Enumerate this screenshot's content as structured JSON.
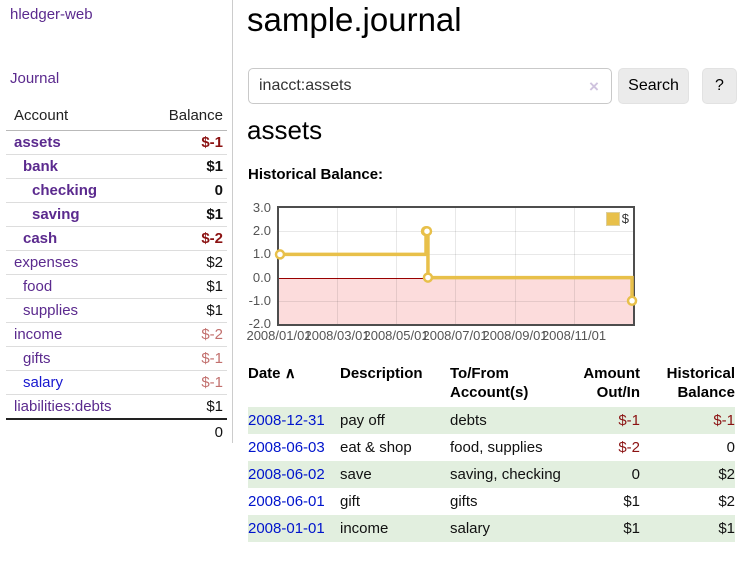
{
  "app": {
    "brand": "hledger-web",
    "nav": {
      "journal": "Journal"
    }
  },
  "sidebar": {
    "columns": {
      "account": "Account",
      "balance": "Balance"
    },
    "accounts": [
      {
        "name": "assets",
        "indent": 0,
        "bold": true,
        "balance": "$-1",
        "balance_style": "neg-strong",
        "name_style": "purple"
      },
      {
        "name": "bank",
        "indent": 1,
        "bold": true,
        "balance": "$1",
        "balance_style": "pos",
        "name_style": "purple"
      },
      {
        "name": "checking",
        "indent": 2,
        "bold": true,
        "balance": "0",
        "balance_style": "pos",
        "name_style": "purple"
      },
      {
        "name": "saving",
        "indent": 2,
        "bold": true,
        "balance": "$1",
        "balance_style": "pos",
        "name_style": "purple"
      },
      {
        "name": "cash",
        "indent": 1,
        "bold": true,
        "balance": "$-2",
        "balance_style": "neg-strong",
        "name_style": "purple"
      },
      {
        "name": "expenses",
        "indent": 0,
        "bold": false,
        "balance": "$2",
        "balance_style": "pos",
        "name_style": "purple"
      },
      {
        "name": "food",
        "indent": 1,
        "bold": false,
        "balance": "$1",
        "balance_style": "pos",
        "name_style": "purple"
      },
      {
        "name": "supplies",
        "indent": 1,
        "bold": false,
        "balance": "$1",
        "balance_style": "pos",
        "name_style": "purple"
      },
      {
        "name": "income",
        "indent": 0,
        "bold": false,
        "balance": "$-2",
        "balance_style": "neg-soft",
        "name_style": "purple"
      },
      {
        "name": "gifts",
        "indent": 1,
        "bold": false,
        "balance": "$-1",
        "balance_style": "neg-soft",
        "name_style": "purple"
      },
      {
        "name": "salary",
        "indent": 1,
        "bold": false,
        "balance": "$-1",
        "balance_style": "neg-soft",
        "name_style": "blue"
      },
      {
        "name": "liabilities:debts",
        "indent": 0,
        "bold": false,
        "balance": "$1",
        "balance_style": "pos",
        "name_style": "purple"
      }
    ],
    "total": "0"
  },
  "header": {
    "title": "sample.journal"
  },
  "search": {
    "value": "inacct:assets",
    "clear_icon": "×",
    "button": "Search",
    "help_button": "?"
  },
  "account_page": {
    "heading": "assets",
    "chart_label": "Historical Balance:"
  },
  "chart_data": {
    "type": "line",
    "title": "Historical Balance",
    "legend": "$",
    "legend_position": "top-right",
    "grid": true,
    "xrange": [
      "2008-01-01",
      "2009-01-01"
    ],
    "ylim": [
      -2,
      3
    ],
    "yticks": [
      {
        "label": "3.0",
        "value": 3
      },
      {
        "label": "2.0",
        "value": 2
      },
      {
        "label": "1.0",
        "value": 1
      },
      {
        "label": "0.0",
        "value": 0
      },
      {
        "label": "-1.0",
        "value": -1
      },
      {
        "label": "-2.0",
        "value": -2
      }
    ],
    "xticks": [
      {
        "label": "2008/01/01",
        "date": "2008-01-01"
      },
      {
        "label": "2008/03/01",
        "date": "2008-03-01"
      },
      {
        "label": "2008/05/01",
        "date": "2008-05-01"
      },
      {
        "label": "2008/07/01",
        "date": "2008-07-01"
      },
      {
        "label": "2008/09/01",
        "date": "2008-09-01"
      },
      {
        "label": "2008/11/01",
        "date": "2008-11-01"
      }
    ],
    "series": [
      {
        "name": "$",
        "color": "#e8c04a",
        "steps": true,
        "points": [
          {
            "date": "2008-01-01",
            "value": 1
          },
          {
            "date": "2008-06-01",
            "value": 2
          },
          {
            "date": "2008-06-02",
            "value": 2
          },
          {
            "date": "2008-06-03",
            "value": 0
          },
          {
            "date": "2008-12-31",
            "value": -1
          }
        ]
      }
    ],
    "negative_region": {
      "fill": "#fcdcdc",
      "zero_line_color": "#990000"
    }
  },
  "register": {
    "columns": {
      "date": "Date",
      "sort_icon": "∧",
      "description": "Description",
      "accounts_line1": "To/From",
      "accounts_line2": "Account(s)",
      "amount_line1": "Amount",
      "amount_line2": "Out/In",
      "balance_line1": "Historical",
      "balance_line2": "Balance"
    },
    "rows": [
      {
        "date": "2008-12-31",
        "description": "pay off",
        "accounts": "debts",
        "amount": "$-1",
        "amount_neg": true,
        "balance": "$-1",
        "balance_neg": true,
        "shaded": true
      },
      {
        "date": "2008-06-03",
        "description": "eat & shop",
        "accounts": "food, supplies",
        "amount": "$-2",
        "amount_neg": true,
        "balance": "0",
        "balance_neg": false,
        "shaded": false
      },
      {
        "date": "2008-06-02",
        "description": "save",
        "accounts": "saving, checking",
        "amount": "0",
        "amount_neg": false,
        "balance": "$2",
        "balance_neg": false,
        "shaded": true
      },
      {
        "date": "2008-06-01",
        "description": "gift",
        "accounts": "gifts",
        "amount": "$1",
        "amount_neg": false,
        "balance": "$2",
        "balance_neg": false,
        "shaded": false
      },
      {
        "date": "2008-01-01",
        "description": "income",
        "accounts": "salary",
        "amount": "$1",
        "amount_neg": false,
        "balance": "$1",
        "balance_neg": false,
        "shaded": true
      }
    ]
  },
  "colors": {
    "link_purple": "#5b2a8e",
    "link_blue": "#1717cf",
    "date_link_blue": "#0014cc",
    "negative_strong": "#8b1212",
    "negative_soft": "#c2706e",
    "row_stripe_green": "#e2efdf",
    "chart_line_yellow": "#e8c04a",
    "chart_negative_fill": "#fcdcdc",
    "chart_zero_line": "#990000"
  }
}
